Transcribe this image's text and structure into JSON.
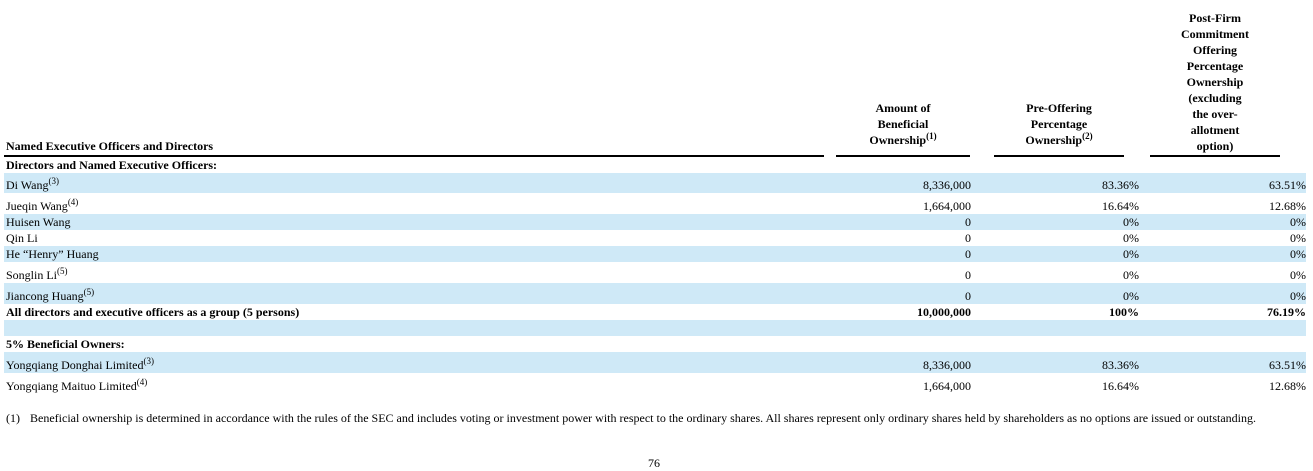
{
  "header": {
    "label": "Named Executive Officers and Directors",
    "amount_lines": [
      "Amount of",
      "Beneficial",
      "Ownership"
    ],
    "amount_sup": "(1)",
    "pre_lines": [
      "Pre-Offering",
      "Percentage",
      "Ownership"
    ],
    "pre_sup": "(2)",
    "post_lines": [
      "Post-Firm",
      "Commitment",
      "Offering",
      "Percentage",
      "Ownership",
      "(excluding",
      "the over-",
      "allotment",
      "option)"
    ]
  },
  "rows": [
    {
      "name": "Directors and Named Executive Officers:",
      "sup": "",
      "amount": "",
      "pre": "",
      "post": "",
      "shade": false,
      "bold": true
    },
    {
      "name": "Di Wang",
      "sup": "(3)",
      "amount": "8,336,000",
      "pre": "83.36%",
      "post": "63.51%",
      "shade": true,
      "bold": false
    },
    {
      "name": "Jueqin Wang",
      "sup": "(4)",
      "amount": "1,664,000",
      "pre": "16.64%",
      "post": "12.68%",
      "shade": false,
      "bold": false
    },
    {
      "name": "Huisen Wang",
      "sup": "",
      "amount": "0",
      "pre": "0%",
      "post": "0%",
      "shade": true,
      "bold": false
    },
    {
      "name": "Qin Li",
      "sup": "",
      "amount": "0",
      "pre": "0%",
      "post": "0%",
      "shade": false,
      "bold": false
    },
    {
      "name": "He “Henry” Huang",
      "sup": "",
      "amount": "0",
      "pre": "0%",
      "post": "0%",
      "shade": true,
      "bold": false
    },
    {
      "name": "Songlin Li",
      "sup": "(5)",
      "amount": "0",
      "pre": "0%",
      "post": "0%",
      "shade": false,
      "bold": false
    },
    {
      "name": "Jiancong Huang",
      "sup": "(5)",
      "amount": "0",
      "pre": "0%",
      "post": "0%",
      "shade": true,
      "bold": false
    },
    {
      "name": "All directors and executive officers as a group (5 persons)",
      "sup": "",
      "amount": "10,000,000",
      "pre": "100%",
      "post": "76.19%",
      "shade": false,
      "bold": true
    },
    {
      "name": "",
      "sup": "",
      "amount": "",
      "pre": "",
      "post": "",
      "shade": true,
      "bold": false
    },
    {
      "name": "5% Beneficial Owners:",
      "sup": "",
      "amount": "",
      "pre": "",
      "post": "",
      "shade": false,
      "bold": true
    },
    {
      "name": "Yongqiang Donghai Limited",
      "sup": "(3)",
      "amount": "8,336,000",
      "pre": "83.36%",
      "post": "63.51%",
      "shade": true,
      "bold": false
    },
    {
      "name": "Yongqiang Maituo Limited",
      "sup": "(4)",
      "amount": "1,664,000",
      "pre": "16.64%",
      "post": "12.68%",
      "shade": false,
      "bold": false
    }
  ],
  "footnote": {
    "num": "(1)",
    "text": "Beneficial ownership is determined in accordance with the rules of the SEC and includes voting or investment power with respect to the ordinary shares. All shares represent only ordinary shares held by shareholders as no options are issued or outstanding."
  },
  "page_number": "76"
}
